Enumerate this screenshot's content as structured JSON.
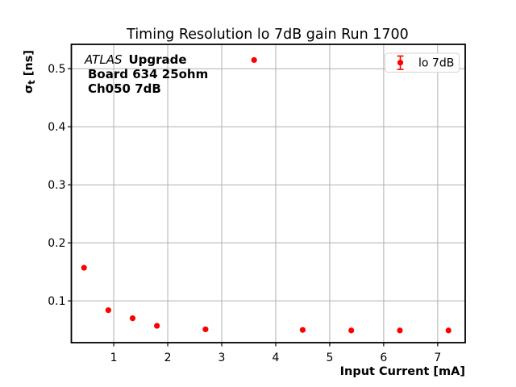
{
  "figure": {
    "title": "Timing Resolution lo 7dB gain Run 1700",
    "x_axis_label": "Input Current [mA]",
    "y_axis_label": {
      "symbol": "σ",
      "subscript": "t",
      "units": "[ns]"
    },
    "annotation": {
      "experiment_italic": "ATLAS",
      "experiment_bold": "Upgrade",
      "board_line": "Board 634 25ohm",
      "channel_line": "Ch050 7dB"
    },
    "legend": {
      "entry_label": "lo 7dB"
    },
    "colors": {
      "series": "#ff0000",
      "grid": "#b0b0b0",
      "spine": "#000000",
      "legend_border": "#d5d5d5",
      "background": "#ffffff"
    }
  },
  "chart_data": {
    "type": "scatter",
    "title": "Timing Resolution lo 7dB gain Run 1700",
    "xlabel": "Input Current [mA]",
    "ylabel": "sigma_t [ns]",
    "series": [
      {
        "name": "lo 7dB",
        "color": "#ff0000",
        "marker": "circle-with-errorbar",
        "x": [
          0.45,
          0.9,
          1.35,
          1.8,
          2.7,
          3.6,
          4.5,
          5.4,
          6.3,
          7.2
        ],
        "y": [
          0.157,
          0.084,
          0.07,
          0.057,
          0.051,
          0.515,
          0.05,
          0.049,
          0.049,
          0.049
        ],
        "yerr": [
          0.003,
          0.002,
          0.002,
          0.002,
          0.002,
          0.004,
          0.002,
          0.002,
          0.002,
          0.002
        ]
      }
    ],
    "xlim": [
      0.215,
      7.51
    ],
    "ylim": [
      0.028,
      0.542
    ],
    "x_ticks": [
      1,
      2,
      3,
      4,
      5,
      6,
      7
    ],
    "y_ticks": [
      0.1,
      0.2,
      0.3,
      0.4,
      0.5
    ],
    "grid": true,
    "legend_position": "upper right",
    "annotation_lines": [
      "ATLAS Upgrade",
      "Board 634 25ohm",
      "Ch050 7dB"
    ]
  }
}
